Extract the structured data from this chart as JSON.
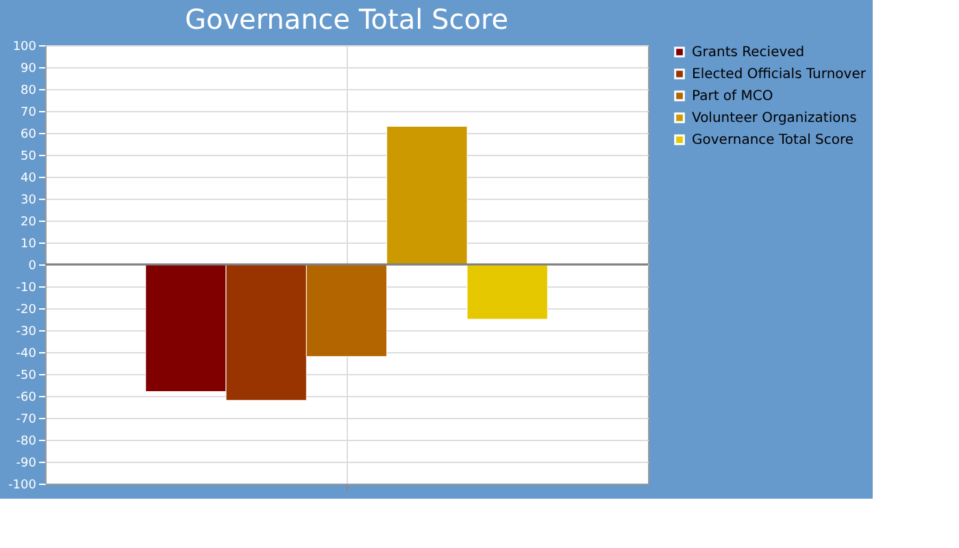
{
  "chart_data": {
    "type": "bar",
    "title": "Governance Total Score",
    "categories": [
      null
    ],
    "series": [
      {
        "name": "Grants Recieved",
        "color": "#800000",
        "values": [
          -58
        ]
      },
      {
        "name": "Elected Officials Turnover",
        "color": "#993300",
        "values": [
          -62
        ]
      },
      {
        "name": "Part of MCO",
        "color": "#b36600",
        "values": [
          -42
        ]
      },
      {
        "name": "Volunteer Organizations",
        "color": "#cc9900",
        "values": [
          63
        ]
      },
      {
        "name": "Governance Total Score",
        "color": "#e6c800",
        "values": [
          -25
        ]
      }
    ],
    "ylim": [
      -100,
      100
    ],
    "yticks": [
      -100,
      -90,
      -80,
      -70,
      -60,
      -50,
      -40,
      -30,
      -20,
      -10,
      0,
      10,
      20,
      30,
      40,
      50,
      60,
      70,
      80,
      90,
      100
    ],
    "ref_lines": [
      {
        "axis": "y",
        "value": 0,
        "color": "#808080"
      }
    ],
    "grid": true,
    "legend": "right"
  }
}
